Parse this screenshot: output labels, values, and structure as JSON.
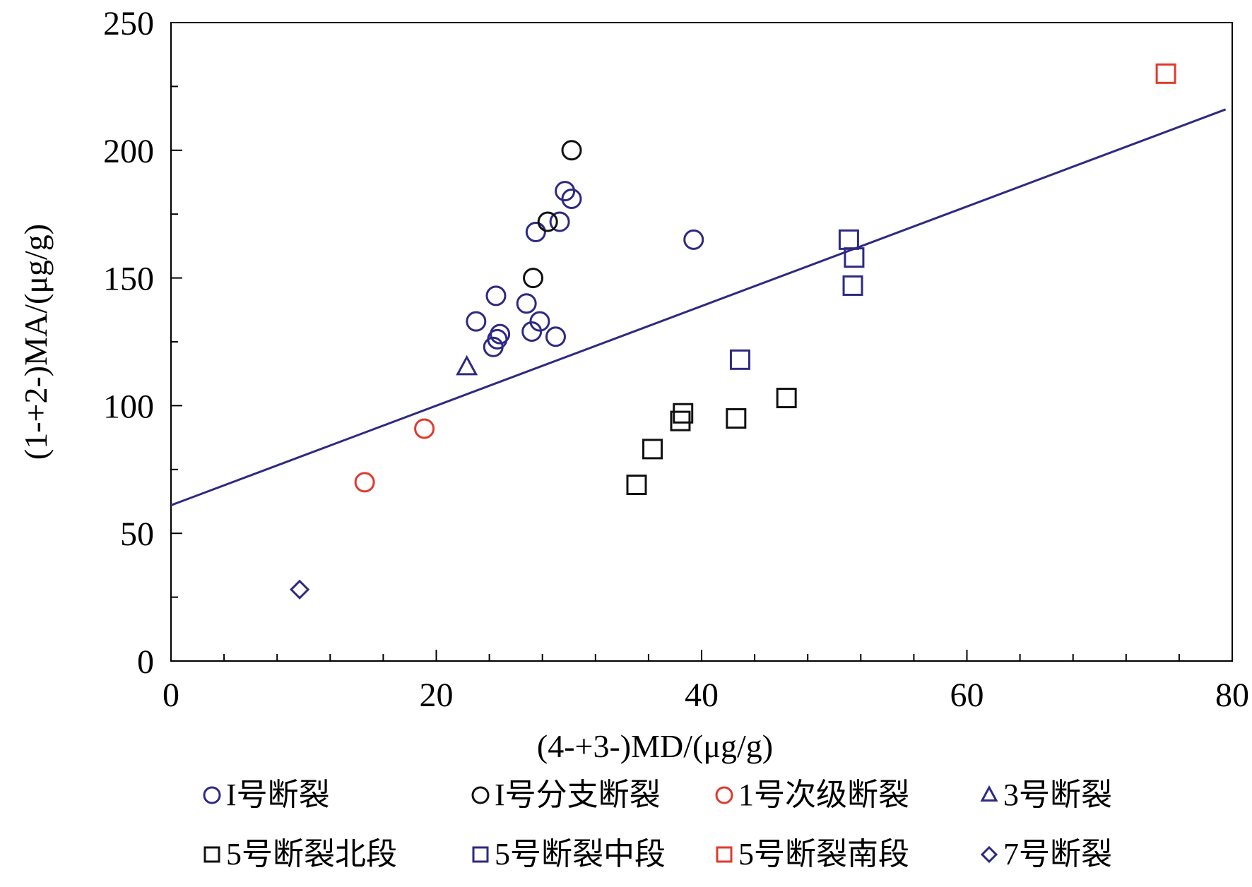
{
  "chart_data": {
    "type": "scatter",
    "xlabel": "(4-+3-)MD/(μg/g)",
    "ylabel": "(1-+2-)MA/(μg/g)",
    "xlim": [
      0,
      80
    ],
    "ylim": [
      0,
      250
    ],
    "x_ticks": [
      "0",
      "20",
      "40",
      "60",
      "80"
    ],
    "y_ticks": [
      "0",
      "50",
      "100",
      "150",
      "200",
      "250"
    ],
    "grid": false,
    "legend_position": "bottom",
    "trendline": {
      "color": "#2e2a82",
      "points": [
        [
          0,
          61
        ],
        [
          79.5,
          216
        ]
      ]
    },
    "series": [
      {
        "name": "I号断裂",
        "marker": "circle",
        "color": "#2e2a82",
        "points": [
          [
            29.7,
            184
          ],
          [
            30.2,
            181
          ],
          [
            29.3,
            172
          ],
          [
            27.5,
            168
          ],
          [
            39.4,
            165
          ],
          [
            24.5,
            143
          ],
          [
            26.8,
            140
          ],
          [
            23.0,
            133
          ],
          [
            27.8,
            133
          ],
          [
            24.8,
            128
          ],
          [
            24.6,
            126
          ],
          [
            27.2,
            129
          ],
          [
            29.0,
            127
          ],
          [
            24.3,
            123
          ]
        ]
      },
      {
        "name": "I号分支断裂",
        "marker": "circle",
        "color": "#111111",
        "points": [
          [
            30.2,
            200
          ],
          [
            28.4,
            172
          ],
          [
            27.3,
            150
          ]
        ]
      },
      {
        "name": "1号次级断裂",
        "marker": "circle",
        "color": "#e03a2c",
        "points": [
          [
            19.1,
            91
          ],
          [
            14.6,
            70
          ]
        ]
      },
      {
        "name": "3号断裂",
        "marker": "triangle",
        "color": "#2e2a82",
        "points": [
          [
            22.3,
            115
          ]
        ]
      },
      {
        "name": "5号断裂北段",
        "marker": "square",
        "color": "#111111",
        "points": [
          [
            46.4,
            103
          ],
          [
            42.6,
            95
          ],
          [
            38.6,
            97
          ],
          [
            38.4,
            94
          ],
          [
            36.3,
            83
          ],
          [
            35.1,
            69
          ]
        ]
      },
      {
        "name": "5号断裂中段",
        "marker": "square",
        "color": "#2e2a82",
        "points": [
          [
            51.1,
            165
          ],
          [
            51.5,
            158
          ],
          [
            51.4,
            147
          ],
          [
            42.9,
            118
          ]
        ]
      },
      {
        "name": "5号断裂南段",
        "marker": "square",
        "color": "#e03a2c",
        "points": [
          [
            75.0,
            230
          ]
        ]
      },
      {
        "name": "7号断裂",
        "marker": "diamond",
        "color": "#2e2a82",
        "points": [
          [
            9.7,
            28
          ]
        ]
      }
    ]
  }
}
